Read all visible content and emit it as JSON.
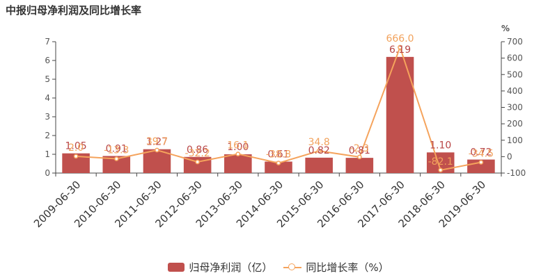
{
  "chart_data": {
    "type": "bar",
    "title": "中报归母净利润及同比增长率",
    "categories": [
      "2009-06-30",
      "2010-06-30",
      "2011-06-30",
      "2012-06-30",
      "2013-06-30",
      "2014-06-30",
      "2015-06-30",
      "2016-06-30",
      "2017-06-30",
      "2018-06-30",
      "2019-06-30"
    ],
    "series": [
      {
        "name": "归母净利润（亿）",
        "type": "bar",
        "axis": "left",
        "values": [
          1.05,
          0.91,
          1.27,
          0.86,
          1.0,
          0.61,
          0.82,
          0.81,
          6.19,
          1.1,
          0.72
        ],
        "labels": [
          "1.05",
          "0.91",
          "1.27",
          "0.86",
          "1.00",
          "0.61",
          "0.82",
          "0.81",
          "6.19",
          "1.10",
          "0.72"
        ]
      },
      {
        "name": "同比增长率（%）",
        "type": "line",
        "axis": "right",
        "values": [
          2.0,
          -13.3,
          39.7,
          -32.2,
          16.1,
          -38.8,
          34.8,
          -2.3,
          666.0,
          -82.1,
          -34.5
        ],
        "labels": [
          "2.0",
          "-13.3",
          "39.7",
          "-32.2",
          "16.1",
          "-38.8",
          "34.8",
          "-2.3",
          "666.0",
          "-82.1",
          "-34.5"
        ]
      }
    ],
    "ylim_left": [
      0,
      7
    ],
    "yticks_left": [
      0,
      1,
      2,
      3,
      4,
      5,
      6,
      7
    ],
    "ylim_right": [
      -100,
      700
    ],
    "yticks_right": [
      -100,
      0,
      100,
      200,
      300,
      400,
      500,
      600,
      700
    ],
    "ylabel_right": "%",
    "legend_position": "bottom-center",
    "grid": false,
    "colors": {
      "bar": "#c0504d",
      "line": "#f5a35c",
      "axis": "#444444"
    }
  }
}
